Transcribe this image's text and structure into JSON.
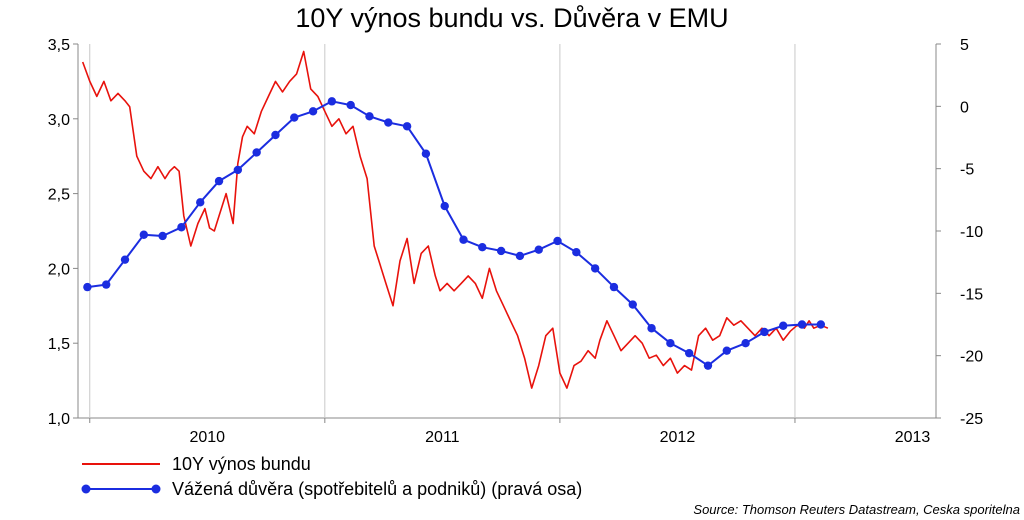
{
  "chart_data": {
    "type": "line",
    "title": "10Y výnos bundu vs. Důvěra v EMU",
    "x_ticks": [
      "2010",
      "2011",
      "2012",
      "2013"
    ],
    "x_range": [
      2009.45,
      2013.1
    ],
    "y_left": {
      "ticks": [
        "1,0",
        "1,5",
        "2,0",
        "2,5",
        "3,0",
        "3,5"
      ],
      "range": [
        1.0,
        3.5
      ]
    },
    "y_right": {
      "ticks": [
        "-25",
        "-20",
        "-15",
        "-10",
        "-5",
        "0",
        "5"
      ],
      "range": [
        -25,
        5
      ]
    },
    "grid": "vertical",
    "legend_position": "bottom-left",
    "series": [
      {
        "name": "10Y výnos bundu",
        "axis": "left",
        "color": "#e8120c",
        "marker": "none",
        "x": [
          2009.47,
          2009.5,
          2009.53,
          2009.56,
          2009.59,
          2009.62,
          2009.65,
          2009.67,
          2009.7,
          2009.73,
          2009.76,
          2009.79,
          2009.82,
          2009.84,
          2009.86,
          2009.88,
          2009.9,
          2009.93,
          2009.96,
          2009.99,
          2010.01,
          2010.03,
          2010.05,
          2010.08,
          2010.11,
          2010.13,
          2010.15,
          2010.17,
          2010.2,
          2010.23,
          2010.26,
          2010.29,
          2010.32,
          2010.35,
          2010.38,
          2010.41,
          2010.44,
          2010.47,
          2010.5,
          2010.53,
          2010.56,
          2010.59,
          2010.62,
          2010.65,
          2010.68,
          2010.71,
          2010.73,
          2010.76,
          2010.79,
          2010.82,
          2010.85,
          2010.88,
          2010.91,
          2010.94,
          2010.97,
          2010.99,
          2011.02,
          2011.05,
          2011.08,
          2011.11,
          2011.14,
          2011.17,
          2011.2,
          2011.23,
          2011.26,
          2011.29,
          2011.32,
          2011.35,
          2011.38,
          2011.41,
          2011.44,
          2011.47,
          2011.5,
          2011.53,
          2011.56,
          2011.59,
          2011.62,
          2011.65,
          2011.67,
          2011.7,
          2011.73,
          2011.76,
          2011.79,
          2011.82,
          2011.85,
          2011.88,
          2011.91,
          2011.94,
          2011.97,
          2012.0,
          2012.03,
          2012.06,
          2012.09,
          2012.12,
          2012.15,
          2012.18,
          2012.21,
          2012.24,
          2012.27,
          2012.3,
          2012.33,
          2012.36,
          2012.39,
          2012.42,
          2012.45,
          2012.48,
          2012.51,
          2012.54,
          2012.56,
          2012.58,
          2012.61,
          2012.64
        ],
        "y": [
          3.38,
          3.25,
          3.15,
          3.25,
          3.12,
          3.17,
          3.12,
          3.08,
          2.75,
          2.65,
          2.6,
          2.68,
          2.6,
          2.65,
          2.68,
          2.65,
          2.35,
          2.15,
          2.3,
          2.4,
          2.27,
          2.25,
          2.35,
          2.5,
          2.3,
          2.7,
          2.88,
          2.95,
          2.9,
          3.05,
          3.15,
          3.25,
          3.18,
          3.25,
          3.3,
          3.45,
          3.2,
          3.15,
          3.05,
          2.95,
          3.0,
          2.9,
          2.95,
          2.75,
          2.6,
          2.15,
          2.05,
          1.9,
          1.75,
          2.05,
          2.2,
          1.9,
          2.1,
          2.15,
          1.95,
          1.85,
          1.9,
          1.85,
          1.9,
          1.95,
          1.9,
          1.8,
          2.0,
          1.85,
          1.75,
          1.65,
          1.55,
          1.4,
          1.2,
          1.35,
          1.55,
          1.6,
          1.3,
          1.2,
          1.35,
          1.38,
          1.45,
          1.4,
          1.52,
          1.65,
          1.55,
          1.45,
          1.5,
          1.55,
          1.5,
          1.4,
          1.42,
          1.35,
          1.4,
          1.3,
          1.35,
          1.32,
          1.55,
          1.6,
          1.52,
          1.55,
          1.67,
          1.62,
          1.65,
          1.6,
          1.55,
          1.6,
          1.55,
          1.6,
          1.52,
          1.58,
          1.62,
          1.6,
          1.65,
          1.6,
          1.62,
          1.6
        ],
        "note": "values on the first ~25 points approximate the early portion of the trace"
      },
      {
        "name": "Vážená důvěra (spotřebitelů a podniků) (pravá osa)",
        "axis": "right",
        "color": "#1b2de0",
        "marker": "circle",
        "x": [
          2009.49,
          2009.57,
          2009.65,
          2009.73,
          2009.81,
          2009.89,
          2009.97,
          2010.05,
          2010.13,
          2010.21,
          2010.29,
          2010.37,
          2010.45,
          2010.53,
          2010.61,
          2010.69,
          2010.77,
          2010.85,
          2010.93,
          2011.01,
          2011.09,
          2011.17,
          2011.25,
          2011.33,
          2011.41,
          2011.49,
          2011.57,
          2011.65,
          2011.73,
          2011.81,
          2011.89,
          2011.97,
          2012.05,
          2012.13,
          2012.21,
          2012.29,
          2012.37,
          2012.45,
          2012.53,
          2012.61
        ],
        "y": [
          -14.5,
          -14.3,
          -12.3,
          -10.3,
          -10.4,
          -9.7,
          -7.7,
          -6.0,
          -5.1,
          -3.7,
          -2.3,
          -0.9,
          -0.4,
          0.4,
          0.1,
          -0.8,
          -1.3,
          -1.6,
          -3.8,
          -8.0,
          -10.7,
          -11.3,
          -11.6,
          -12.0,
          -11.5,
          -10.8,
          -11.7,
          -13.0,
          -14.5,
          -15.9,
          -17.8,
          -19.0,
          -19.8,
          -20.8,
          -19.6,
          -19.0,
          -18.1,
          -17.6,
          -17.5,
          -17.5
        ]
      }
    ],
    "source": "Source: Thomson Reuters Datastream, Ceska sporitelna"
  }
}
